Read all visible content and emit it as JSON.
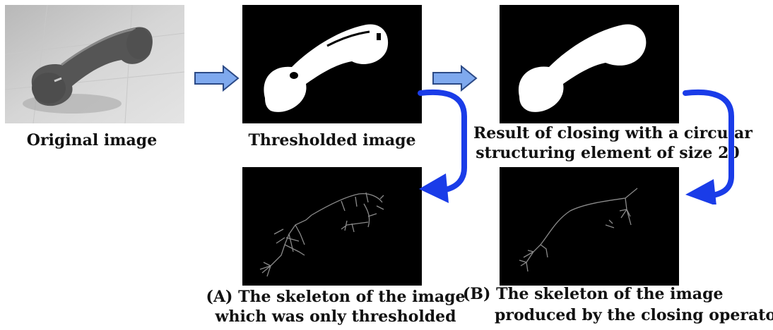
{
  "captions": {
    "original": "Original image",
    "thresholded": "Thresholded image",
    "closing_line1": "Result of closing with a circular",
    "closing_line2": "structuring element of size 20",
    "a_line1": "(A) The skeleton of the image",
    "a_line2": "which was only thresholded",
    "b_line1": "(B) The skeleton of the image",
    "b_line2": "produced by the closing operator"
  },
  "colors": {
    "block_arrow_fill": "#7fa9ee",
    "block_arrow_stroke": "#2c4a86",
    "curved_arrow": "#1a3ce8",
    "panel_bg": "#000000",
    "skeleton_line": "#8a8a8a"
  }
}
